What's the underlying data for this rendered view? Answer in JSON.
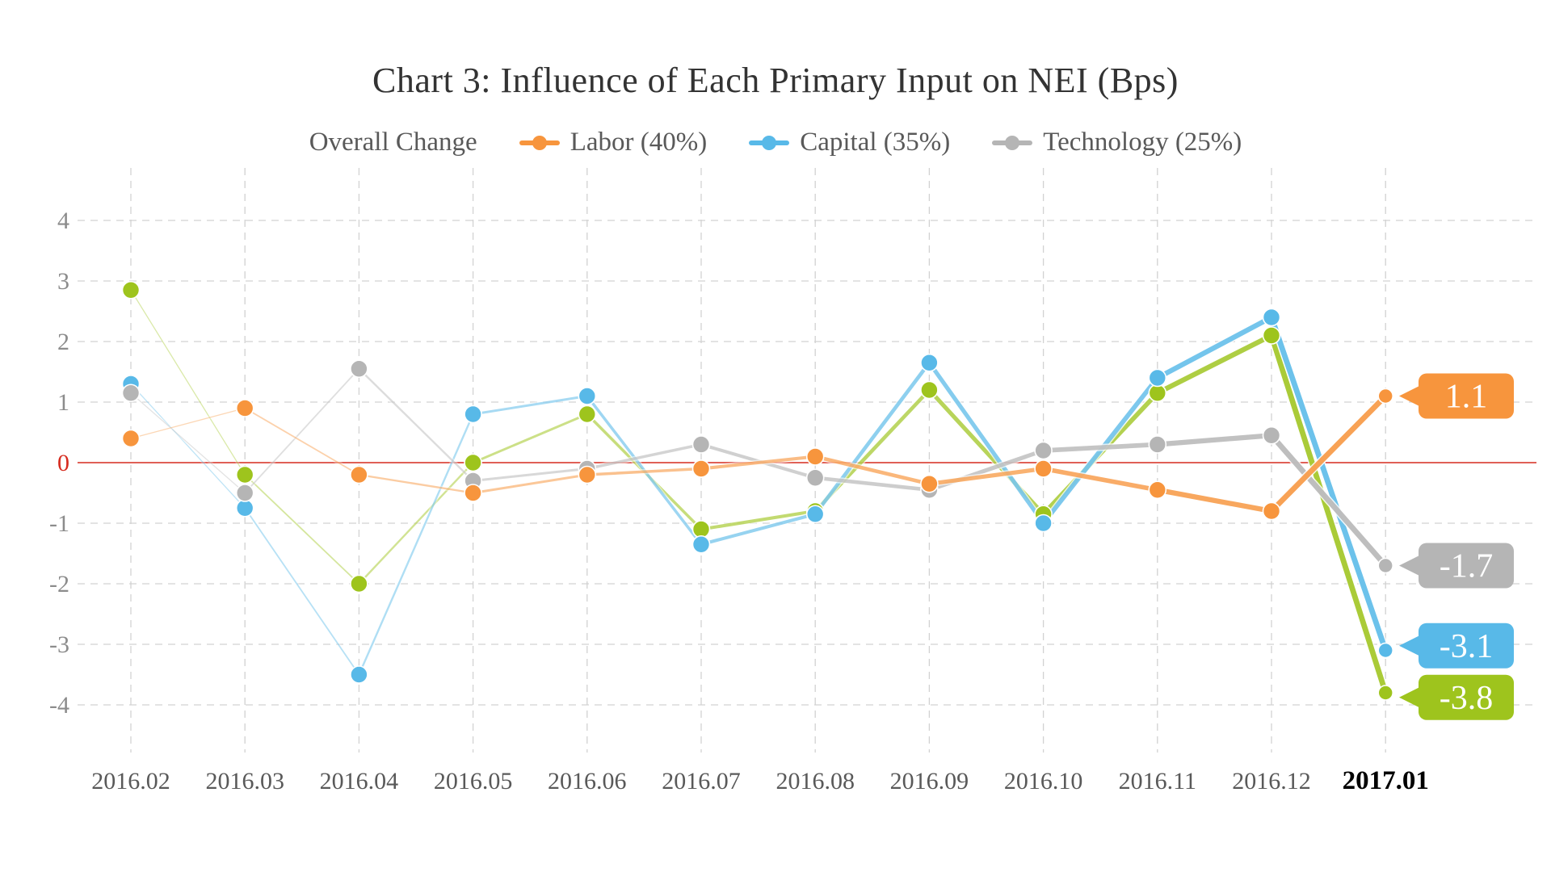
{
  "chart": {
    "title": "Chart 3: Influence of Each Primary Input on NEI (Bps)"
  },
  "chart_data": {
    "type": "line",
    "title": "Chart 3: Influence of Each Primary Input on NEI (Bps)",
    "categories": [
      "2016.02",
      "2016.03",
      "2016.04",
      "2016.05",
      "2016.06",
      "2016.07",
      "2016.08",
      "2016.09",
      "2016.10",
      "2016.11",
      "2016.12",
      "2017.01"
    ],
    "series": [
      {
        "name": "Overall Change",
        "color": "#9ec41d",
        "legend_marker": false,
        "end_label": "-3.8",
        "values": [
          2.85,
          -0.2,
          -2.0,
          0.0,
          0.8,
          -1.1,
          -0.8,
          1.2,
          -0.85,
          1.15,
          2.1,
          -3.8
        ]
      },
      {
        "name": "Labor (40%)",
        "color": "#f7953d",
        "legend_marker": true,
        "end_label": "1.1",
        "values": [
          0.4,
          0.9,
          -0.2,
          -0.5,
          -0.2,
          -0.1,
          0.1,
          -0.35,
          -0.1,
          -0.45,
          -0.8,
          1.1
        ]
      },
      {
        "name": "Capital (35%)",
        "color": "#58b9e8",
        "legend_marker": true,
        "end_label": "-3.1",
        "values": [
          1.3,
          -0.75,
          -3.5,
          0.8,
          1.1,
          -1.35,
          -0.85,
          1.65,
          -1.0,
          1.4,
          2.4,
          -3.1
        ]
      },
      {
        "name": "Technology (25%)",
        "color": "#b5b5b5",
        "legend_marker": true,
        "end_label": "-1.7",
        "values": [
          1.15,
          -0.5,
          1.55,
          -0.3,
          -0.1,
          0.3,
          -0.25,
          -0.45,
          0.2,
          0.3,
          0.45,
          -1.7
        ]
      }
    ],
    "y_ticks": [
      4,
      3,
      2,
      1,
      0,
      -1,
      -2,
      -3,
      -4
    ],
    "ylim": [
      -4.8,
      4.9
    ],
    "grid": true,
    "legend_position": "top",
    "zero_line_color": "#d62b1f",
    "y_tick_color": "#8c8c8c",
    "x_tick_color": "#595959",
    "x_tick_emphasis_last_color": "#000000"
  }
}
